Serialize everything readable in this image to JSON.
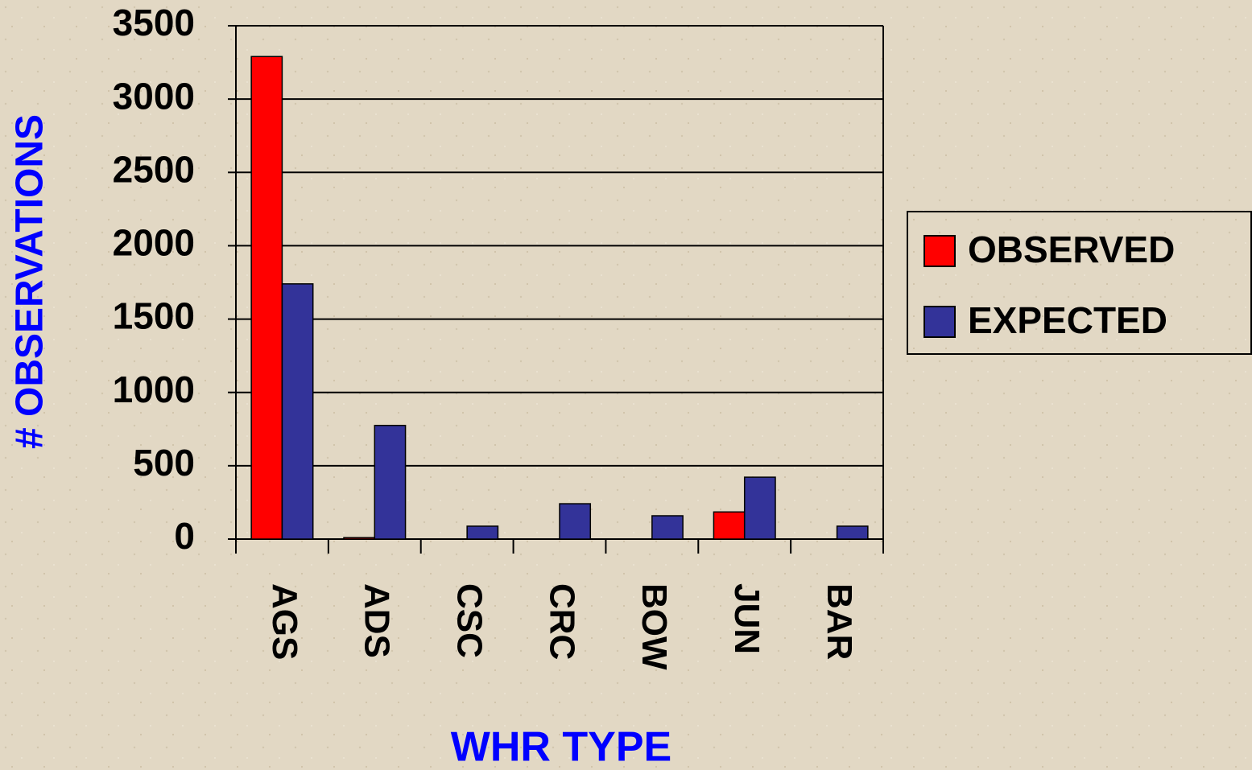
{
  "chart_data": {
    "type": "bar",
    "x_label": "WHR TYPE",
    "y_label": "# OBSERVATIONS",
    "categories": [
      "AGS",
      "ADS",
      "CSC",
      "CRC",
      "BOW",
      "JUN",
      "BAR"
    ],
    "series": [
      {
        "name": "OBSERVED",
        "color": "#ff0000",
        "values": [
          3290,
          10,
          0,
          0,
          0,
          185,
          0
        ]
      },
      {
        "name": "EXPECTED",
        "color": "#333399",
        "values": [
          1740,
          775,
          88,
          241,
          159,
          422,
          88
        ]
      }
    ],
    "ylim": [
      0,
      3500
    ],
    "yticks": [
      0,
      500,
      1000,
      1500,
      2000,
      2500,
      3000,
      3500
    ],
    "grid": true,
    "legend": "right"
  }
}
